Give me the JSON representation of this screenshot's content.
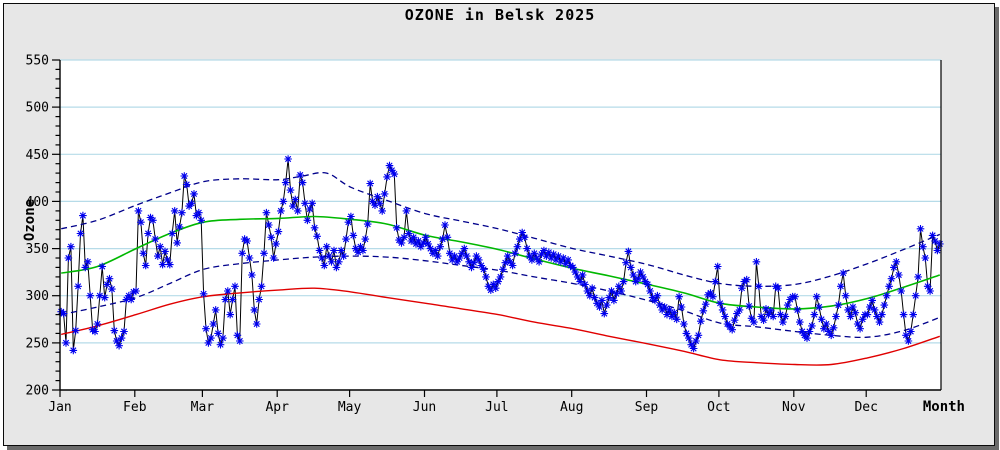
{
  "window": {
    "title": "OZONE in Belsk 2025"
  },
  "axes": {
    "y_label": "Ozone",
    "x_label": "Month",
    "y_tick_labels": [
      "200",
      "250",
      "300",
      "350",
      "400",
      "450",
      "500",
      "550"
    ]
  },
  "chart_data": {
    "type": "line",
    "title": "OZONE in Belsk 2025",
    "xlabel": "Month",
    "ylabel": "Ozone",
    "ylim": [
      200,
      550
    ],
    "y_major_step": 50,
    "y_minor_step": 10,
    "grid": {
      "horizontal": true,
      "vertical": false,
      "color": "#b6dbe8"
    },
    "legend_position": "none",
    "x_unit": "day_of_year_2025",
    "month_labels": [
      "Jan",
      "Feb",
      "Mar",
      "Apr",
      "May",
      "Jun",
      "Jul",
      "Aug",
      "Sep",
      "Oct",
      "Nov",
      "Dec"
    ],
    "month_start_days": [
      0,
      31,
      59,
      90,
      120,
      151,
      181,
      212,
      243,
      273,
      304,
      334
    ],
    "colors": {
      "daily_marker": "#0000ee",
      "daily_line": "#000000",
      "envelope_dashed": "#00008b",
      "mean_curve": "#00b800",
      "minimum_curve": "#e00000",
      "gridline": "#b6dbe8",
      "plot_background": "#ffffff",
      "window_background": "#e7e7e7",
      "axis": "#000000"
    },
    "series": [
      {
        "name": "daily_ozone_2025",
        "style": "blue asterisk markers joined by thin black line",
        "values": [
          283,
          281,
          250,
          340,
          352,
          242,
          263,
          310,
          366,
          385,
          330,
          336,
          300,
          264,
          262,
          270,
          300,
          331,
          298,
          312,
          318,
          307,
          263,
          252,
          247,
          255,
          262,
          296,
          300,
          296,
          304,
          305,
          390,
          378,
          345,
          332,
          366,
          383,
          380,
          360,
          342,
          352,
          333,
          347,
          338,
          333,
          366,
          390,
          356,
          373,
          388,
          427,
          418,
          395,
          398,
          408,
          385,
          388,
          380,
          302,
          265,
          250,
          255,
          270,
          285,
          260,
          248,
          255,
          296,
          305,
          280,
          296,
          310,
          258,
          252,
          345,
          360,
          358,
          340,
          322,
          285,
          270,
          296,
          310,
          345,
          388,
          375,
          362,
          340,
          355,
          368,
          390,
          400,
          420,
          445,
          412,
          395,
          402,
          390,
          428,
          420,
          398,
          380,
          392,
          398,
          372,
          363,
          348,
          340,
          332,
          352,
          342,
          336,
          348,
          330,
          336,
          348,
          342,
          360,
          378,
          384,
          364,
          350,
          346,
          352,
          348,
          360,
          376,
          419,
          400,
          396,
          405,
          398,
          390,
          408,
          426,
          438,
          433,
          429,
          372,
          359,
          356,
          362,
          390,
          366,
          358,
          362,
          355,
          358,
          352,
          356,
          362,
          355,
          350,
          345,
          348,
          342,
          352,
          360,
          375,
          362,
          345,
          338,
          342,
          336,
          340,
          345,
          350,
          342,
          336,
          330,
          335,
          342,
          338,
          332,
          328,
          320,
          310,
          306,
          312,
          308,
          315,
          320,
          328,
          335,
          342,
          336,
          332,
          345,
          352,
          360,
          367,
          362,
          350,
          342,
          338,
          345,
          340,
          336,
          344,
          348,
          342,
          346,
          340,
          344,
          338,
          342,
          336,
          340,
          334,
          338,
          332,
          330,
          325,
          320,
          315,
          322,
          312,
          305,
          300,
          308,
          298,
          292,
          288,
          295,
          281,
          290,
          298,
          305,
          295,
          302,
          310,
          305,
          315,
          335,
          347,
          330,
          322,
          315,
          318,
          325,
          320,
          315,
          312,
          305,
          298,
          295,
          300,
          290,
          285,
          288,
          280,
          285,
          278,
          282,
          275,
          299,
          288,
          270,
          260,
          255,
          248,
          244,
          252,
          258,
          273,
          284,
          291,
          301,
          303,
          299,
          315,
          331,
          292,
          285,
          278,
          270,
          267,
          264,
          274,
          281,
          285,
          308,
          315,
          317,
          289,
          276,
          272,
          336,
          310,
          278,
          274,
          286,
          280,
          284,
          278,
          310,
          308,
          280,
          272,
          278,
          290,
          296,
          299,
          299,
          285,
          272,
          262,
          258,
          255,
          262,
          268,
          280,
          299,
          288,
          275,
          265,
          270,
          262,
          258,
          266,
          278,
          290,
          310,
          324,
          300,
          285,
          278,
          288,
          282,
          270,
          265,
          275,
          280,
          280,
          288,
          295,
          285,
          278,
          272,
          280,
          290,
          300,
          310,
          318,
          330,
          336,
          322,
          305,
          280,
          258,
          252,
          262,
          280,
          300,
          320,
          371,
          352,
          340,
          310,
          305,
          364,
          358,
          348,
          355
        ]
      },
      {
        "name": "upper_envelope",
        "style": "navy dashed smooth curve",
        "anchors": [
          [
            0,
            371
          ],
          [
            15,
            380
          ],
          [
            31,
            396
          ],
          [
            45,
            409
          ],
          [
            59,
            421
          ],
          [
            74,
            424
          ],
          [
            90,
            423
          ],
          [
            100,
            427
          ],
          [
            110,
            430
          ],
          [
            120,
            415
          ],
          [
            135,
            401
          ],
          [
            151,
            387
          ],
          [
            166,
            379
          ],
          [
            181,
            371
          ],
          [
            196,
            361
          ],
          [
            212,
            350
          ],
          [
            227,
            342
          ],
          [
            243,
            333
          ],
          [
            258,
            322
          ],
          [
            273,
            313
          ],
          [
            288,
            310
          ],
          [
            304,
            312
          ],
          [
            319,
            321
          ],
          [
            334,
            334
          ],
          [
            349,
            349
          ],
          [
            364,
            365
          ]
        ]
      },
      {
        "name": "mean_climatology",
        "style": "green solid smooth curve",
        "anchors": [
          [
            0,
            324
          ],
          [
            15,
            331
          ],
          [
            31,
            350
          ],
          [
            45,
            366
          ],
          [
            59,
            378
          ],
          [
            74,
            381
          ],
          [
            90,
            382
          ],
          [
            105,
            384
          ],
          [
            120,
            381
          ],
          [
            135,
            376
          ],
          [
            151,
            364
          ],
          [
            166,
            357
          ],
          [
            181,
            349
          ],
          [
            196,
            339
          ],
          [
            212,
            329
          ],
          [
            227,
            321
          ],
          [
            243,
            312
          ],
          [
            258,
            303
          ],
          [
            273,
            292
          ],
          [
            288,
            288
          ],
          [
            304,
            286
          ],
          [
            319,
            289
          ],
          [
            334,
            297
          ],
          [
            349,
            309
          ],
          [
            364,
            322
          ]
        ]
      },
      {
        "name": "lower_envelope",
        "style": "navy dashed smooth curve",
        "anchors": [
          [
            0,
            280
          ],
          [
            15,
            288
          ],
          [
            31,
            298
          ],
          [
            45,
            313
          ],
          [
            59,
            328
          ],
          [
            74,
            334
          ],
          [
            90,
            338
          ],
          [
            105,
            341
          ],
          [
            120,
            342
          ],
          [
            135,
            341
          ],
          [
            151,
            337
          ],
          [
            166,
            332
          ],
          [
            181,
            327
          ],
          [
            196,
            320
          ],
          [
            212,
            313
          ],
          [
            227,
            305
          ],
          [
            243,
            295
          ],
          [
            258,
            284
          ],
          [
            273,
            271
          ],
          [
            288,
            267
          ],
          [
            304,
            262
          ],
          [
            319,
            258
          ],
          [
            334,
            256
          ],
          [
            349,
            263
          ],
          [
            364,
            277
          ]
        ]
      },
      {
        "name": "minimum_curve",
        "style": "red solid smooth curve",
        "anchors": [
          [
            0,
            259
          ],
          [
            15,
            268
          ],
          [
            31,
            280
          ],
          [
            45,
            291
          ],
          [
            59,
            299
          ],
          [
            74,
            303
          ],
          [
            90,
            306
          ],
          [
            105,
            308
          ],
          [
            120,
            304
          ],
          [
            135,
            298
          ],
          [
            151,
            292
          ],
          [
            166,
            286
          ],
          [
            181,
            280
          ],
          [
            196,
            272
          ],
          [
            212,
            265
          ],
          [
            227,
            257
          ],
          [
            243,
            249
          ],
          [
            258,
            241
          ],
          [
            273,
            232
          ],
          [
            288,
            229
          ],
          [
            304,
            227
          ],
          [
            319,
            227
          ],
          [
            334,
            234
          ],
          [
            349,
            244
          ],
          [
            364,
            257
          ]
        ]
      }
    ]
  }
}
